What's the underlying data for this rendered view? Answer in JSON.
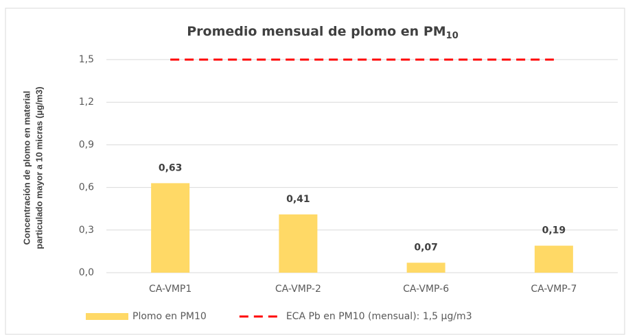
{
  "chart_data": {
    "type": "bar",
    "title": "Promedio mensual de plomo en PM",
    "title_subscript": "10",
    "y_label": [
      "Concentración de plomo en material",
      "particulado mayor a 10 micras (µg/m3)"
    ],
    "categories": [
      "CA-VMP1",
      "CA-VMP-2",
      "CA-VMP-6",
      "CA-VMP-7"
    ],
    "series": [
      {
        "name": "Plomo en PM10",
        "type": "bar",
        "color": "#ffd966",
        "values": [
          0.63,
          0.41,
          0.07,
          0.19
        ],
        "value_labels": [
          "0,63",
          "0,41",
          "0,07",
          "0,19"
        ]
      },
      {
        "name": "ECA Pb en PM10 (mensual): 1,5 µg/m3",
        "type": "line",
        "dashed": true,
        "color": "#ff0000",
        "values": [
          1.5,
          1.5,
          1.5,
          1.5
        ]
      }
    ],
    "ylim": [
      0,
      1.5
    ],
    "yticks": [
      {
        "value": 0,
        "label": "0,0"
      },
      {
        "value": 0.3,
        "label": "0,3"
      },
      {
        "value": 0.6,
        "label": "0,6"
      },
      {
        "value": 0.9,
        "label": "0,9"
      },
      {
        "value": 1.2,
        "label": "1,2"
      },
      {
        "value": 1.5,
        "label": "1,5"
      }
    ],
    "grid": true,
    "legend": "bottom"
  }
}
